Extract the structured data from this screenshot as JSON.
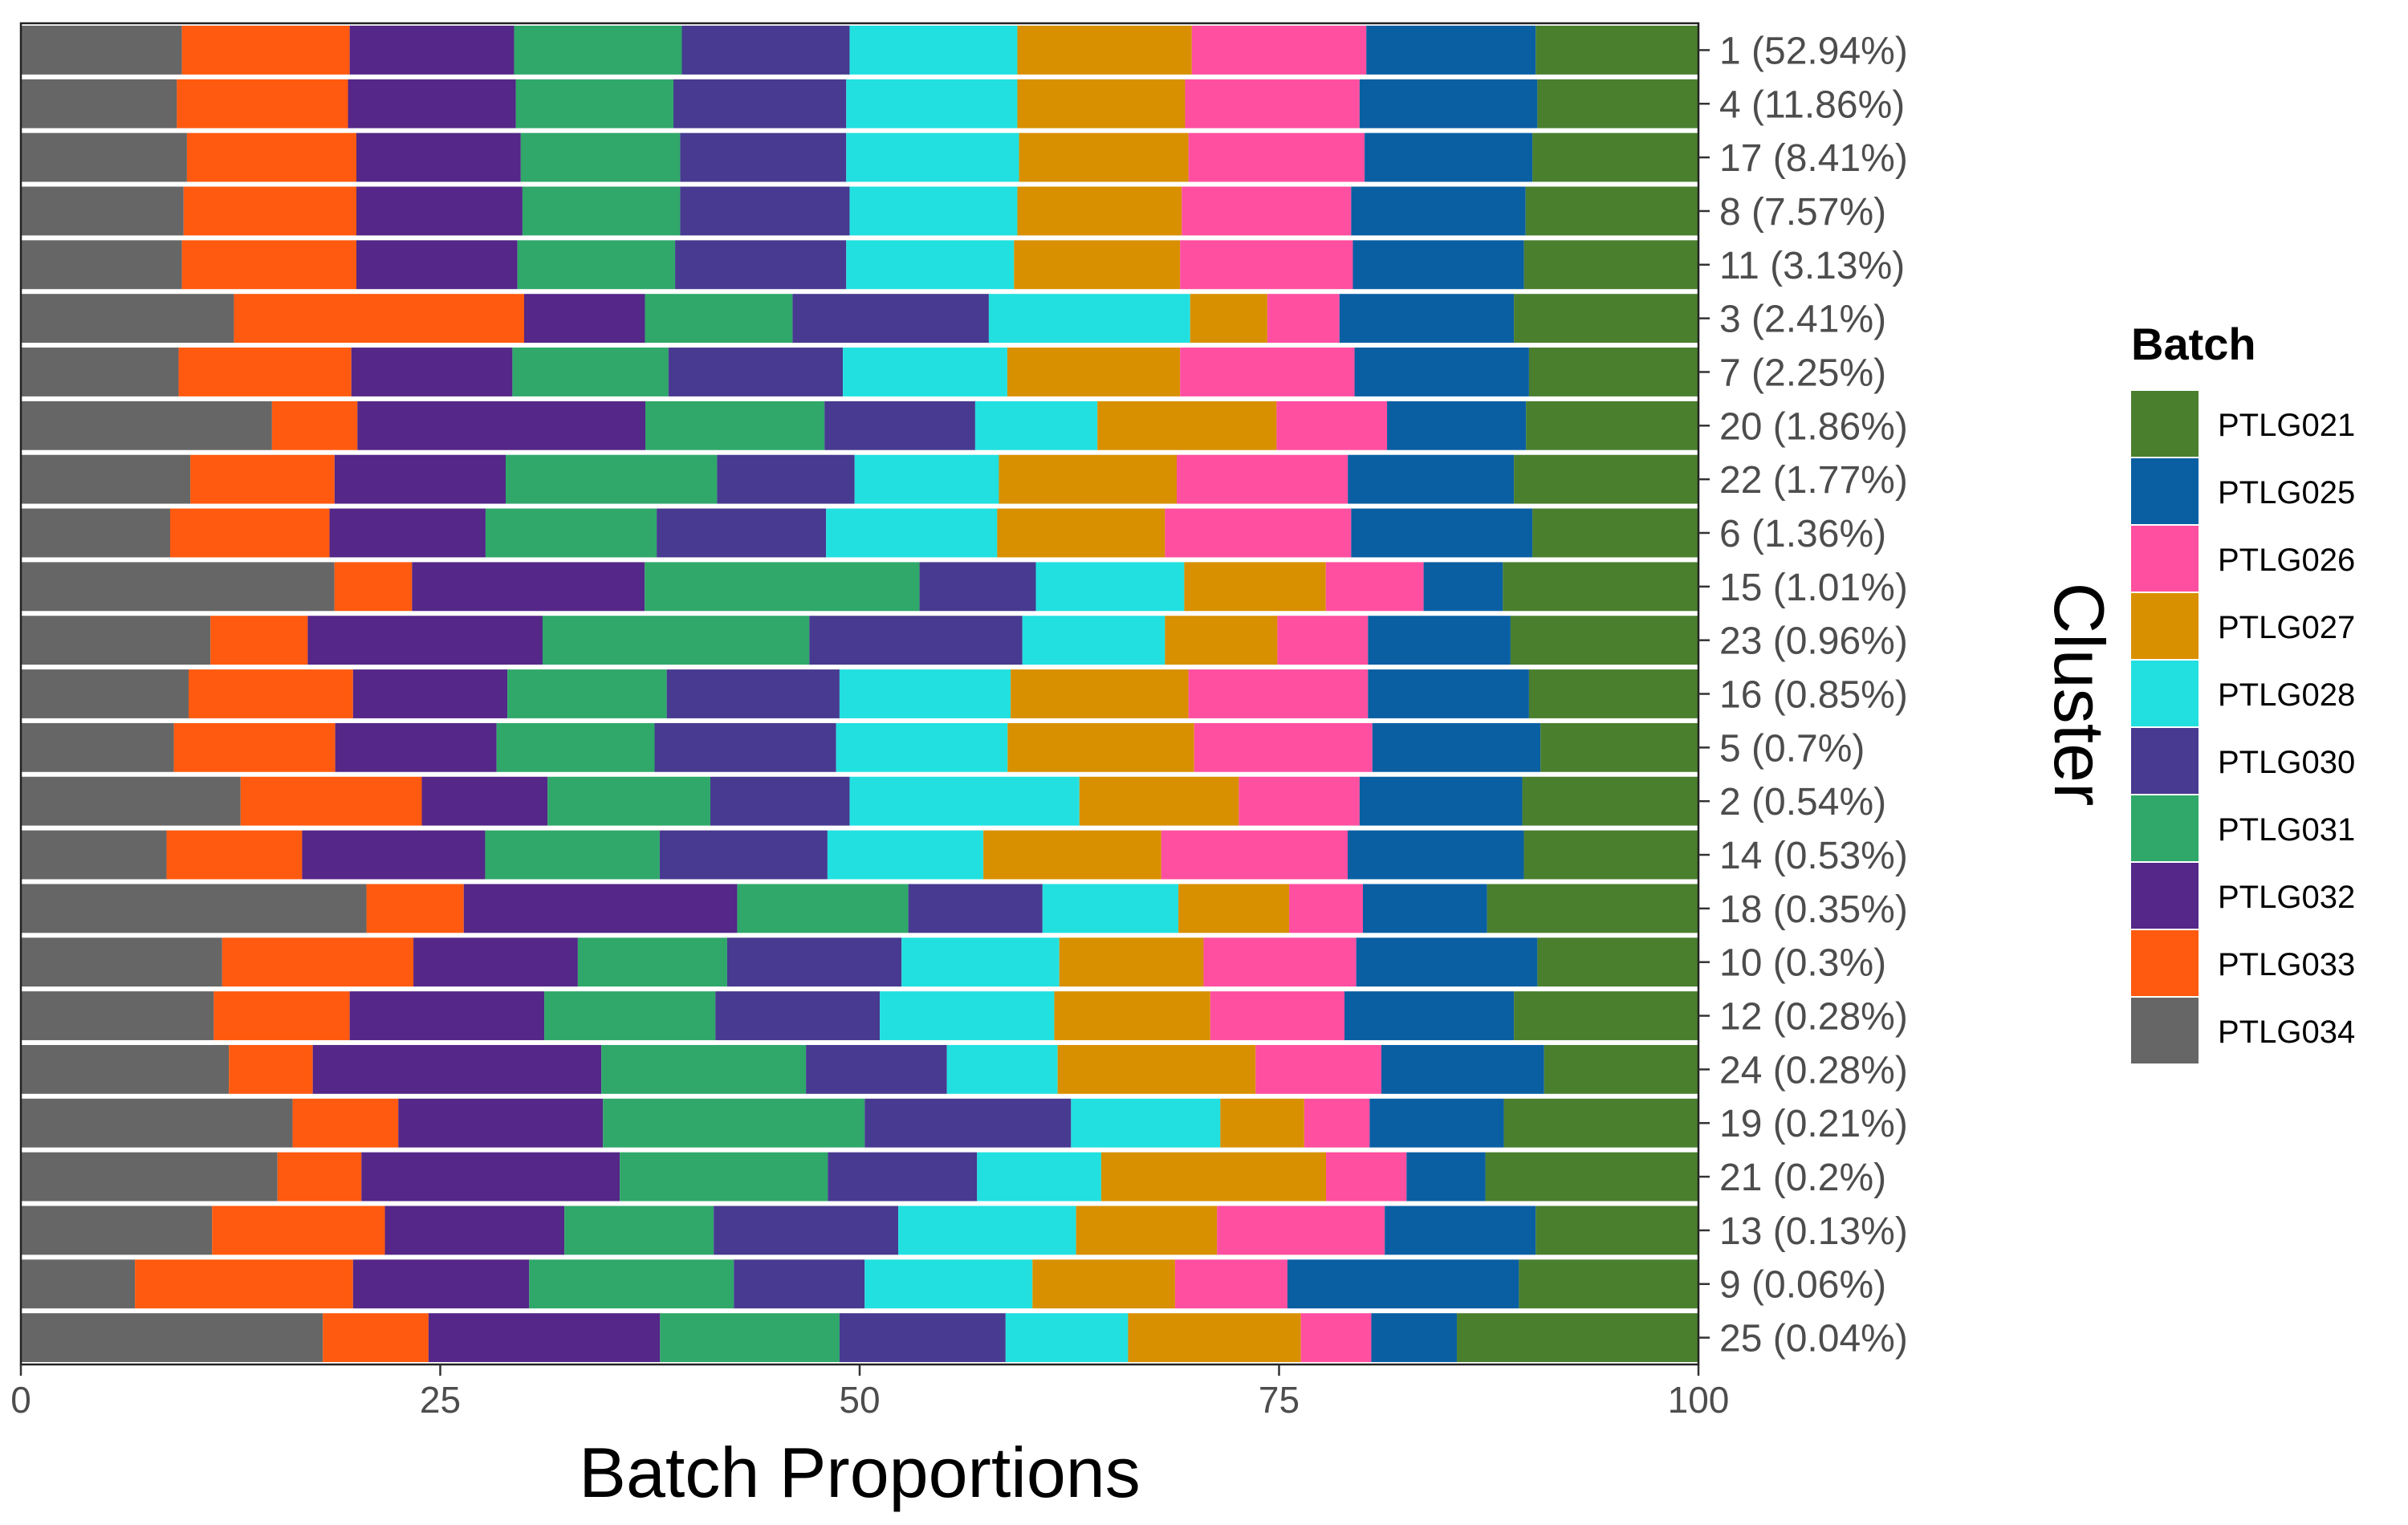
{
  "chart_data": {
    "type": "bar",
    "orientation": "horizontal",
    "stacked": true,
    "xlabel": "Batch Proportions",
    "ylabel": "Cluster",
    "xlim": [
      0,
      100
    ],
    "xticks": [
      "0",
      "25",
      "50",
      "75",
      "100"
    ],
    "grid": false,
    "legend": {
      "title": "Batch",
      "placement": "right"
    },
    "categories": [
      "1 (52.94%)",
      "4 (11.86%)",
      "17 (8.41%)",
      "8 (7.57%)",
      "11 (3.13%)",
      "3 (2.41%)",
      "7 (2.25%)",
      "20 (1.86%)",
      "22 (1.77%)",
      "6 (1.36%)",
      "15 (1.01%)",
      "23 (0.96%)",
      "16 (0.85%)",
      "5 (0.7%)",
      "2 (0.54%)",
      "14 (0.53%)",
      "18 (0.35%)",
      "10 (0.3%)",
      "12 (0.28%)",
      "24 (0.28%)",
      "19 (0.21%)",
      "21 (0.2%)",
      "13 (0.13%)",
      "9 (0.06%)",
      "25 (0.04%)"
    ],
    "series": [
      {
        "name": "PTLG034",
        "color": "#666666",
        "values": [
          9.6,
          9.3,
          9.9,
          9.7,
          9.6,
          12.7,
          9.4,
          15.0,
          10.1,
          8.9,
          18.6,
          11.3,
          10.0,
          9.1,
          13.1,
          8.6,
          20.6,
          12.0,
          11.5,
          12.4,
          16.2,
          15.3,
          11.4,
          6.8,
          18.0
        ]
      },
      {
        "name": "PTLG033",
        "color": "#FF5A0F",
        "values": [
          10.0,
          10.2,
          10.1,
          10.3,
          10.4,
          17.3,
          10.3,
          5.1,
          8.6,
          9.5,
          4.6,
          5.8,
          9.8,
          9.6,
          10.8,
          8.0,
          5.8,
          11.4,
          8.1,
          5.0,
          6.3,
          5.0,
          10.3,
          13.0,
          6.3
        ]
      },
      {
        "name": "PTLG032",
        "color": "#542788",
        "values": [
          9.8,
          10.0,
          9.8,
          9.9,
          9.6,
          7.2,
          9.6,
          17.2,
          10.2,
          9.3,
          13.8,
          14.0,
          9.2,
          9.6,
          7.5,
          10.8,
          16.3,
          9.8,
          11.6,
          17.2,
          12.2,
          15.4,
          10.7,
          10.5,
          13.8
        ]
      },
      {
        "name": "PTLG031",
        "color": "#2FA86A",
        "values": [
          10.0,
          9.4,
          9.5,
          9.4,
          9.4,
          8.8,
          9.3,
          10.7,
          12.6,
          10.2,
          16.3,
          15.9,
          9.5,
          9.4,
          9.7,
          10.3,
          10.2,
          8.9,
          10.2,
          12.2,
          15.6,
          12.4,
          8.9,
          12.2,
          10.7
        ]
      },
      {
        "name": "PTLG030",
        "color": "#473A90",
        "values": [
          10.0,
          10.3,
          9.9,
          10.1,
          10.2,
          11.7,
          10.4,
          9.0,
          8.2,
          10.1,
          6.9,
          12.7,
          10.3,
          10.8,
          8.3,
          9.9,
          8.0,
          10.4,
          9.8,
          8.4,
          12.3,
          8.9,
          11.0,
          7.8,
          9.9
        ]
      },
      {
        "name": "PTLG028",
        "color": "#22E0E0",
        "values": [
          10.0,
          10.2,
          10.3,
          10.0,
          10.0,
          12.0,
          9.8,
          7.3,
          8.6,
          10.2,
          8.8,
          8.5,
          10.2,
          10.2,
          13.7,
          9.2,
          8.1,
          9.4,
          10.4,
          6.6,
          8.9,
          7.4,
          10.6,
          10.0,
          7.3
        ]
      },
      {
        "name": "PTLG027",
        "color": "#D89000",
        "values": [
          10.4,
          10.0,
          10.1,
          9.8,
          9.9,
          4.6,
          10.3,
          10.7,
          10.6,
          10.0,
          8.4,
          6.7,
          10.6,
          11.1,
          9.5,
          10.5,
          6.6,
          8.6,
          9.3,
          11.8,
          5.0,
          13.4,
          8.4,
          8.5,
          10.3
        ]
      },
      {
        "name": "PTLG026",
        "color": "#FF4FA0",
        "values": [
          10.4,
          10.4,
          10.5,
          10.1,
          10.3,
          4.3,
          10.4,
          6.6,
          10.2,
          11.1,
          5.8,
          5.4,
          10.7,
          10.6,
          7.2,
          11.0,
          4.4,
          9.1,
          8.0,
          7.5,
          3.9,
          4.8,
          10.0,
          6.7,
          4.2
        ]
      },
      {
        "name": "PTLG025",
        "color": "#0A5FA3",
        "values": [
          10.1,
          10.6,
          10.0,
          10.4,
          10.2,
          10.4,
          10.4,
          8.3,
          9.9,
          10.8,
          4.7,
          8.5,
          9.6,
          10.0,
          9.7,
          10.4,
          7.4,
          10.8,
          10.1,
          9.7,
          8.0,
          4.7,
          9.0,
          13.8,
          5.1
        ]
      },
      {
        "name": "PTLG021",
        "color": "#4A7F2E",
        "values": [
          9.7,
          9.6,
          9.9,
          10.3,
          10.4,
          11.0,
          10.1,
          10.3,
          11.0,
          9.9,
          11.6,
          11.2,
          10.1,
          9.4,
          10.5,
          10.3,
          12.6,
          9.6,
          11.0,
          9.2,
          11.6,
          12.7,
          9.7,
          10.7,
          14.4
        ]
      }
    ]
  }
}
